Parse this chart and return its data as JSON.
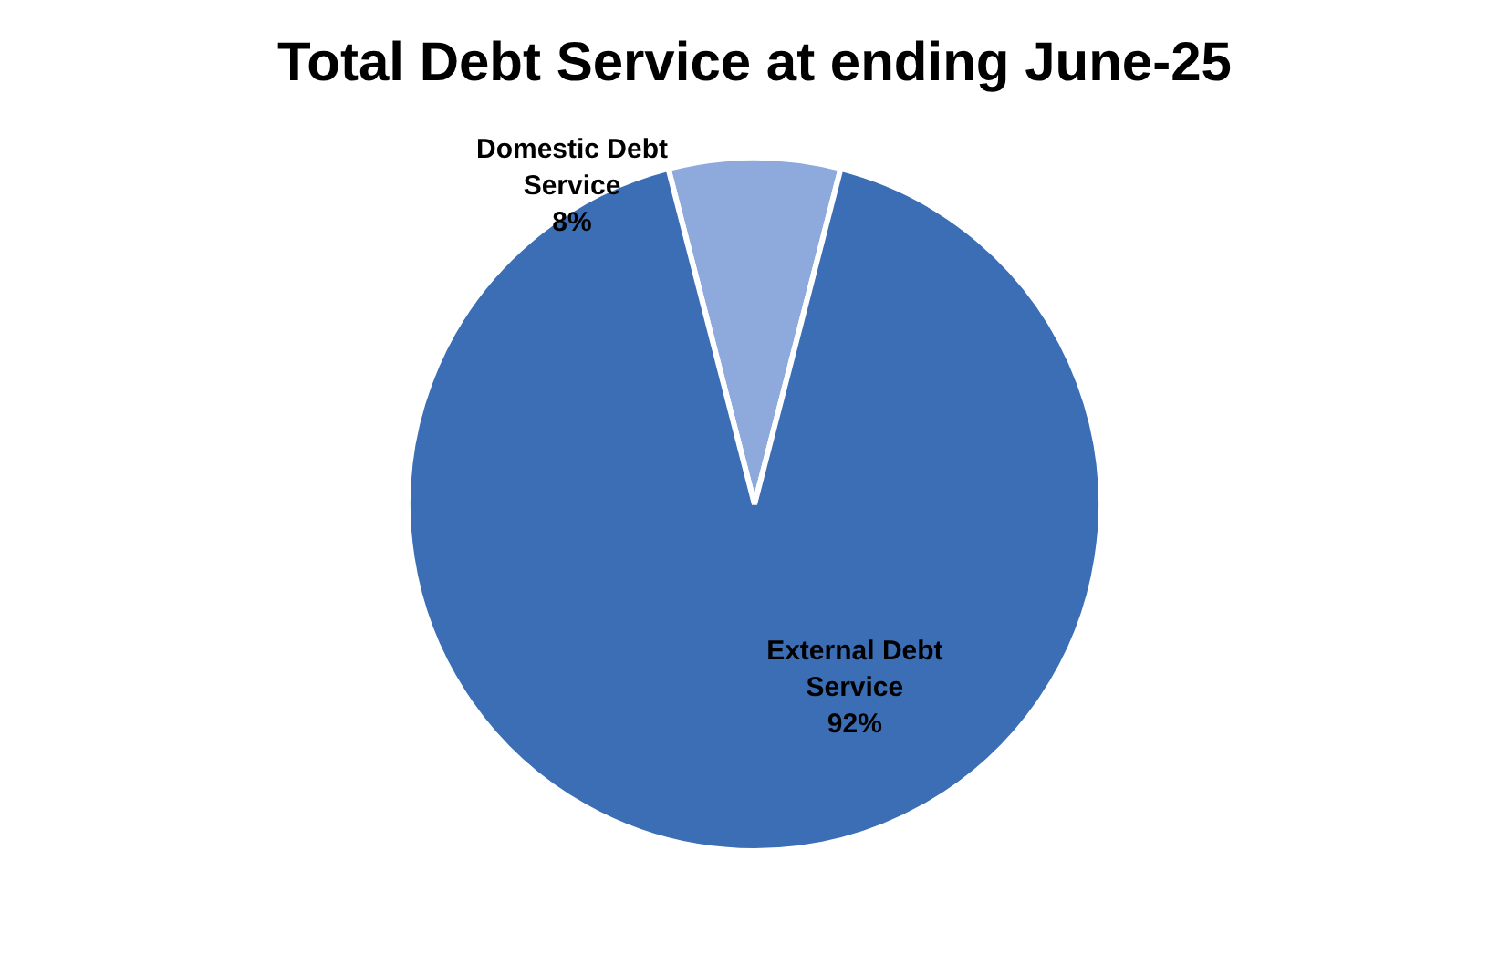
{
  "chart_data": {
    "type": "pie",
    "title": "Total Debt Service at ending June-25",
    "categories": [
      "Domestic Debt Service",
      "External Debt Service"
    ],
    "values": [
      8,
      92
    ],
    "colors": [
      "#8eaadc",
      "#3b6eb5"
    ],
    "value_labels": [
      "8%",
      "92%"
    ],
    "legend": false
  }
}
